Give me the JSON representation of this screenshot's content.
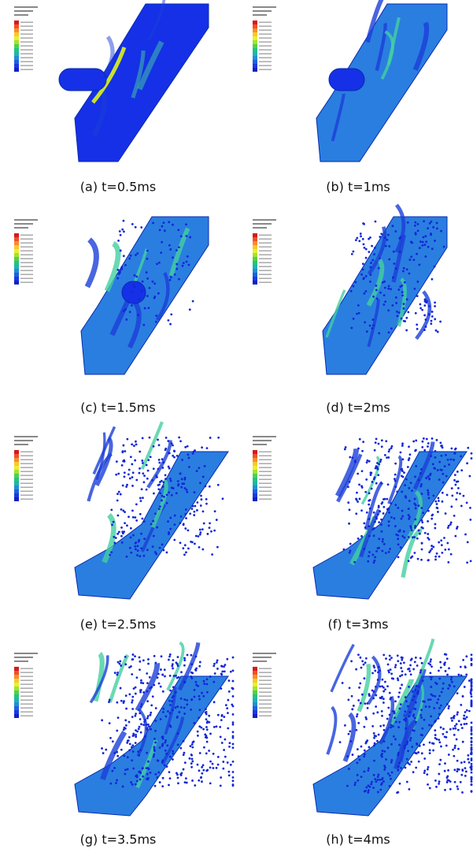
{
  "panels": [
    {
      "caption": "(a) t=0.5ms"
    },
    {
      "caption": "(b) t=1ms"
    },
    {
      "caption": "(c) t=1.5ms"
    },
    {
      "caption": "(d) t=2ms"
    },
    {
      "caption": "(e) t=2.5ms"
    },
    {
      "caption": "(f) t=3ms"
    },
    {
      "caption": "(g) t=3.5ms"
    },
    {
      "caption": "(h) t=4ms"
    }
  ]
}
